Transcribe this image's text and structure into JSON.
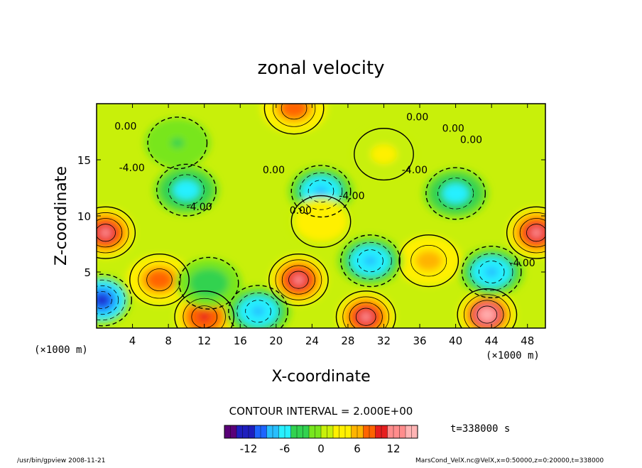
{
  "chart_data": {
    "type": "heatmap",
    "title": "zonal velocity",
    "xlabel": "X-coordinate",
    "ylabel": "Z-coordinate",
    "x_unit": "(×1000 m)",
    "z_unit": "(×1000 m)",
    "xlim": [
      0,
      50
    ],
    "ylim": [
      0,
      20
    ],
    "x_ticks": [
      4,
      8,
      12,
      16,
      20,
      24,
      28,
      32,
      36,
      40,
      44,
      48
    ],
    "y_ticks": [
      5,
      10,
      15
    ],
    "contour_interval_text": "CONTOUR INTERVAL = 2.000E+00",
    "contour_interval": 2.0,
    "contour_labels": [
      "0.00",
      "-4.00"
    ],
    "colorbar": {
      "min": -16,
      "max": 16,
      "ticks": [
        -12,
        -6,
        0,
        6,
        12
      ],
      "colors": [
        "#5a0078",
        "#1e1ebe",
        "#1e64ff",
        "#28beff",
        "#28f0ff",
        "#32d250",
        "#78e61e",
        "#c8f00a",
        "#fff000",
        "#ffb400",
        "#ff6400",
        "#e61e1e",
        "#ff8c8c",
        "#ffb4b4"
      ]
    },
    "time_text": "t=338000 s",
    "features": [
      {
        "x": 22.5,
        "z": 4.3,
        "value": 12
      },
      {
        "x": 43.5,
        "z": 1.2,
        "value": 14
      },
      {
        "x": 30.0,
        "z": 1.0,
        "value": 12
      },
      {
        "x": 49.0,
        "z": 8.5,
        "value": 12
      },
      {
        "x": 1.0,
        "z": 8.5,
        "value": 12
      },
      {
        "x": 7.0,
        "z": 4.3,
        "value": 8
      },
      {
        "x": 12.0,
        "z": 1.0,
        "value": 10
      },
      {
        "x": 37.0,
        "z": 6.0,
        "value": 6
      },
      {
        "x": 30.5,
        "z": 6.0,
        "value": -8
      },
      {
        "x": 44.0,
        "z": 5.0,
        "value": -8
      },
      {
        "x": 0.6,
        "z": 2.5,
        "value": -12
      },
      {
        "x": 18.0,
        "z": 1.5,
        "value": -8
      },
      {
        "x": 12.5,
        "z": 4.0,
        "value": -4
      },
      {
        "x": 25.0,
        "z": 12.2,
        "value": -8
      },
      {
        "x": 10.0,
        "z": 12.3,
        "value": -6
      },
      {
        "x": 40.0,
        "z": 12.0,
        "value": -6
      },
      {
        "x": 22.0,
        "z": 19.6,
        "value": 8
      },
      {
        "x": 25.0,
        "z": 9.5,
        "value": 4
      },
      {
        "x": 9.0,
        "z": 16.5,
        "value": -2
      },
      {
        "x": 32.0,
        "z": 15.5,
        "value": 2
      }
    ]
  },
  "footer": {
    "left": "/usr/bin/gpview  2008-11-21",
    "right": "MarsCond_VelX.nc@VelX,x=0:50000,z=0:20000,t=338000"
  }
}
